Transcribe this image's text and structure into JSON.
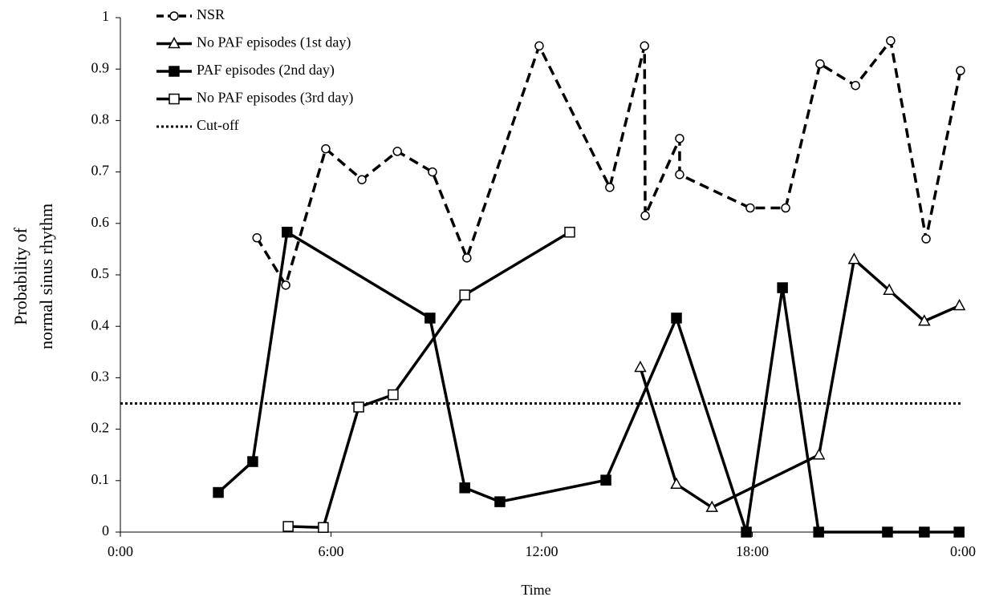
{
  "chart_data": {
    "type": "line",
    "xlabel": "Time",
    "ylabel": [
      "Probability of",
      "normal sinus rhythm"
    ],
    "xlim": [
      0,
      24
    ],
    "xticks": [
      {
        "value": 0,
        "label": "0:00"
      },
      {
        "value": 6,
        "label": "6:00"
      },
      {
        "value": 12,
        "label": "12:00"
      },
      {
        "value": 18,
        "label": "18:00"
      },
      {
        "value": 24,
        "label": "0:00"
      }
    ],
    "ylim": [
      0,
      1
    ],
    "yticks": [
      0,
      0.1,
      0.2,
      0.3,
      0.4,
      0.5,
      0.6,
      0.7,
      0.8,
      0.9,
      1
    ],
    "series": [
      {
        "name": "NSR",
        "color": "#000000",
        "marker": "circle",
        "filled": false,
        "dashed": true,
        "x": [
          3.89,
          4.71,
          5.85,
          6.88,
          7.89,
          8.89,
          9.87,
          11.93,
          13.94,
          14.93,
          14.95,
          15.93,
          15.93,
          17.94,
          18.95,
          19.93,
          20.94,
          21.94,
          22.95,
          23.93
        ],
        "values": [
          0.572,
          0.48,
          0.745,
          0.685,
          0.74,
          0.7,
          0.533,
          0.945,
          0.67,
          0.945,
          0.615,
          0.765,
          0.695,
          0.63,
          0.63,
          0.91,
          0.868,
          0.955,
          0.57,
          0.897
        ]
      },
      {
        "name": "No PAF episodes (1st day)",
        "color": "#000000",
        "marker": "triangle",
        "filled": false,
        "dashed": false,
        "x": [
          14.81,
          15.84,
          16.85,
          19.9,
          20.9,
          21.9,
          22.9,
          23.9
        ],
        "values": [
          0.32,
          0.093,
          0.048,
          0.15,
          0.53,
          0.47,
          0.41,
          0.44
        ]
      },
      {
        "name": "PAF episodes (2nd day)",
        "color": "#000000",
        "marker": "square",
        "filled": true,
        "dashed": false,
        "x": [
          2.79,
          3.77,
          4.75,
          8.82,
          9.81,
          10.81,
          13.83,
          15.84,
          17.83,
          18.86,
          19.89,
          21.85,
          22.9,
          23.89
        ],
        "values": [
          0.077,
          0.137,
          0.583,
          0.416,
          0.086,
          0.059,
          0.101,
          0.416,
          0,
          0.475,
          0,
          0,
          0,
          0
        ]
      },
      {
        "name": "No PAF episodes (3rd day)",
        "color": "#000000",
        "marker": "square",
        "filled": false,
        "dashed": false,
        "x": [
          4.78,
          5.78,
          6.79,
          7.77,
          9.81,
          12.8
        ],
        "values": [
          0.011,
          0.009,
          0.243,
          0.267,
          0.461,
          0.583
        ]
      }
    ],
    "cutoff": {
      "label": "Cut-off",
      "value": 0.25
    }
  }
}
